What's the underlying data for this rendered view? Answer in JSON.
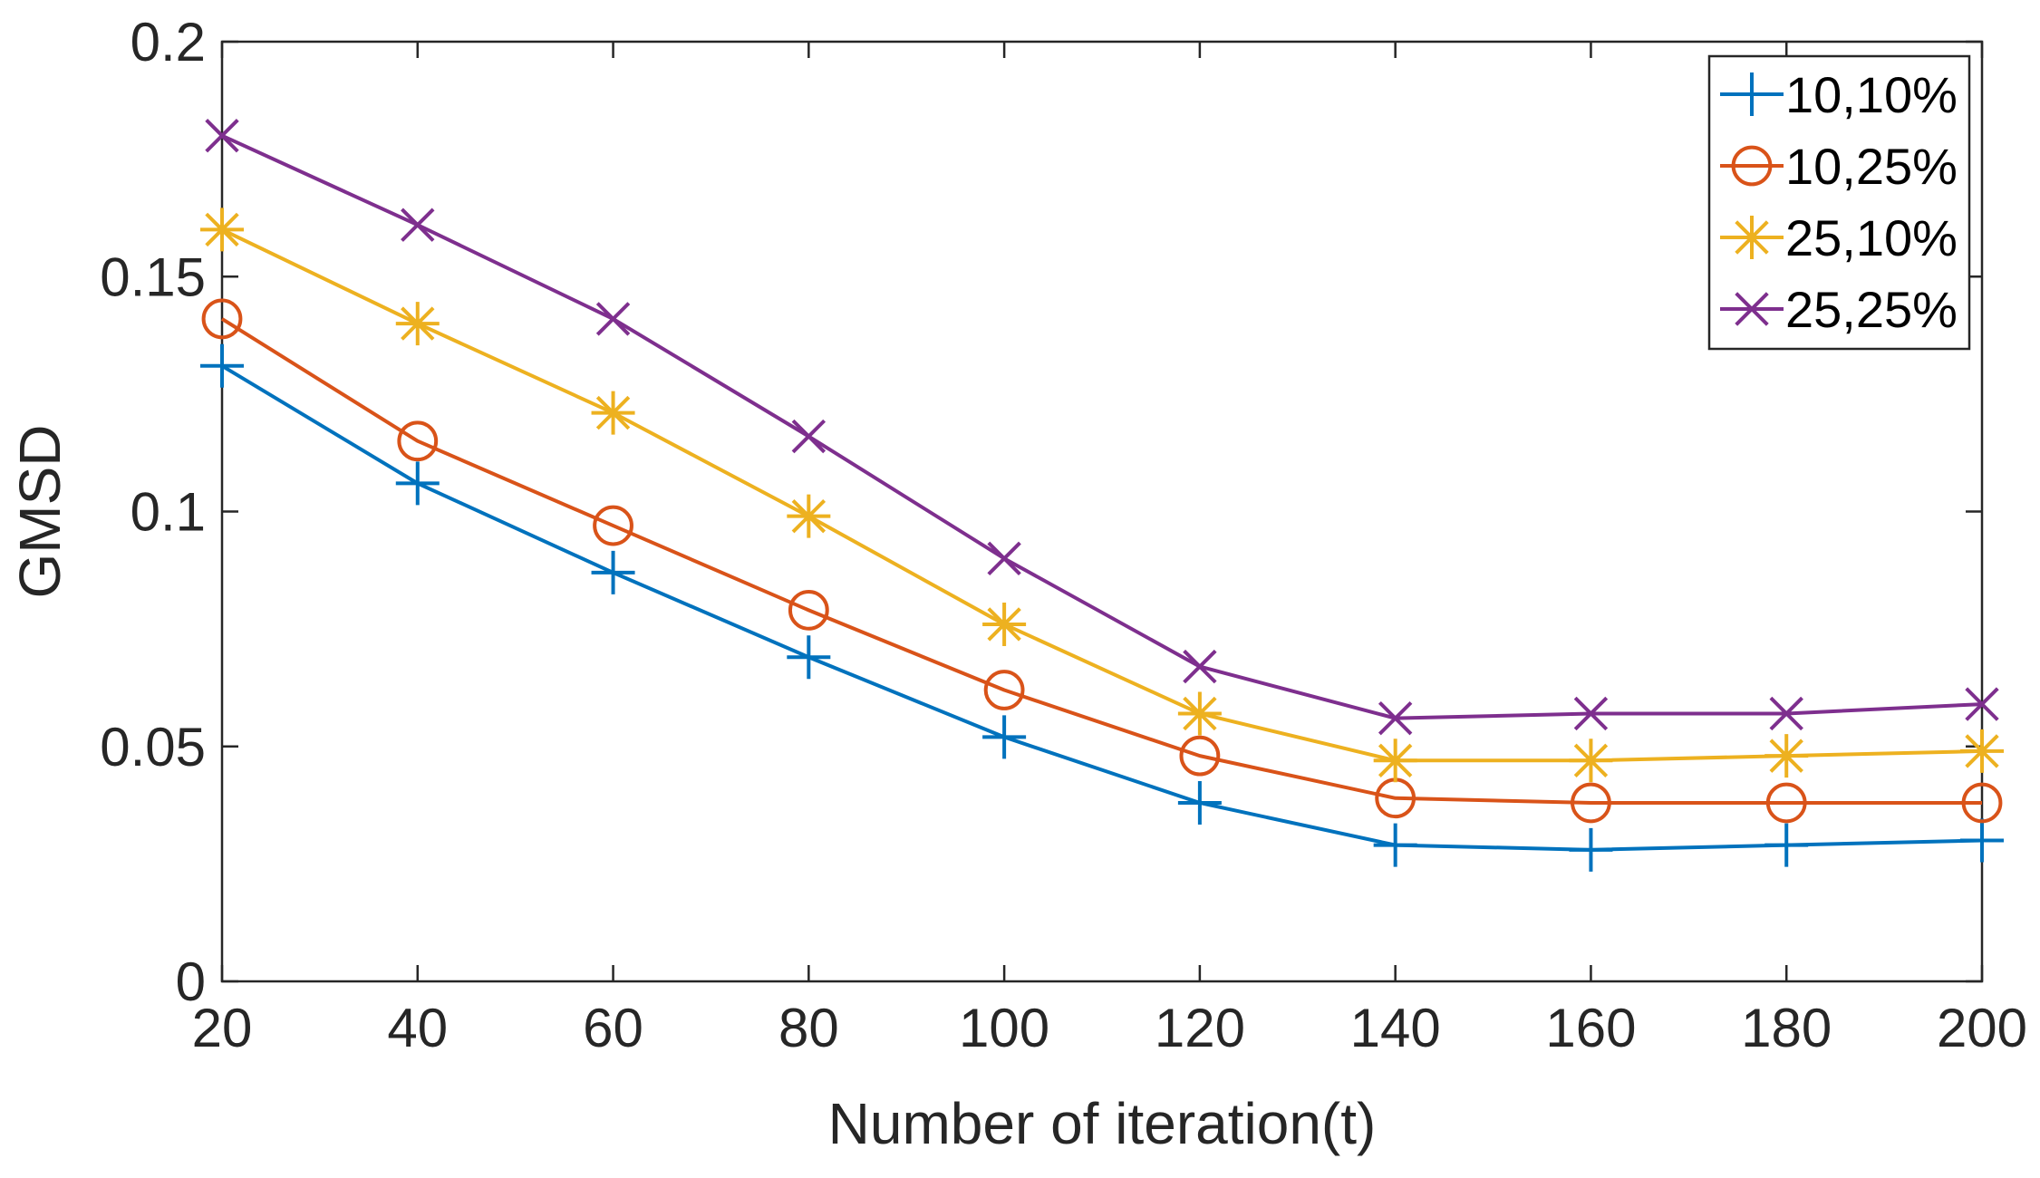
{
  "chart_data": {
    "type": "line",
    "title": "",
    "xlabel": "Number of iteration(t)",
    "ylabel": "GMSD",
    "xlim": [
      20,
      200
    ],
    "ylim": [
      0,
      0.2
    ],
    "x": [
      20,
      40,
      60,
      80,
      100,
      120,
      140,
      160,
      180,
      200
    ],
    "xticks": [
      20,
      40,
      60,
      80,
      100,
      120,
      140,
      160,
      180,
      200
    ],
    "yticks": [
      0,
      0.05,
      0.1,
      0.15,
      0.2
    ],
    "ytick_labels": [
      "0",
      "0.05",
      "0.1",
      "0.15",
      "0.2"
    ],
    "grid": false,
    "legend_position": "top-right",
    "series": [
      {
        "name": "10,10%",
        "marker": "plus",
        "color": "#0072BD",
        "values": [
          0.131,
          0.106,
          0.087,
          0.069,
          0.052,
          0.038,
          0.029,
          0.028,
          0.029,
          0.03
        ]
      },
      {
        "name": "10,25%",
        "marker": "circle",
        "color": "#D95319",
        "values": [
          0.141,
          0.115,
          0.097,
          0.079,
          0.062,
          0.048,
          0.039,
          0.038,
          0.038,
          0.038
        ]
      },
      {
        "name": "25,10%",
        "marker": "asterisk",
        "color": "#EDB120",
        "values": [
          0.16,
          0.14,
          0.121,
          0.099,
          0.076,
          0.057,
          0.047,
          0.047,
          0.048,
          0.049
        ]
      },
      {
        "name": "25,25%",
        "marker": "cross",
        "color": "#7E2F8E",
        "values": [
          0.18,
          0.161,
          0.141,
          0.116,
          0.09,
          0.067,
          0.056,
          0.057,
          0.057,
          0.059
        ]
      }
    ]
  }
}
